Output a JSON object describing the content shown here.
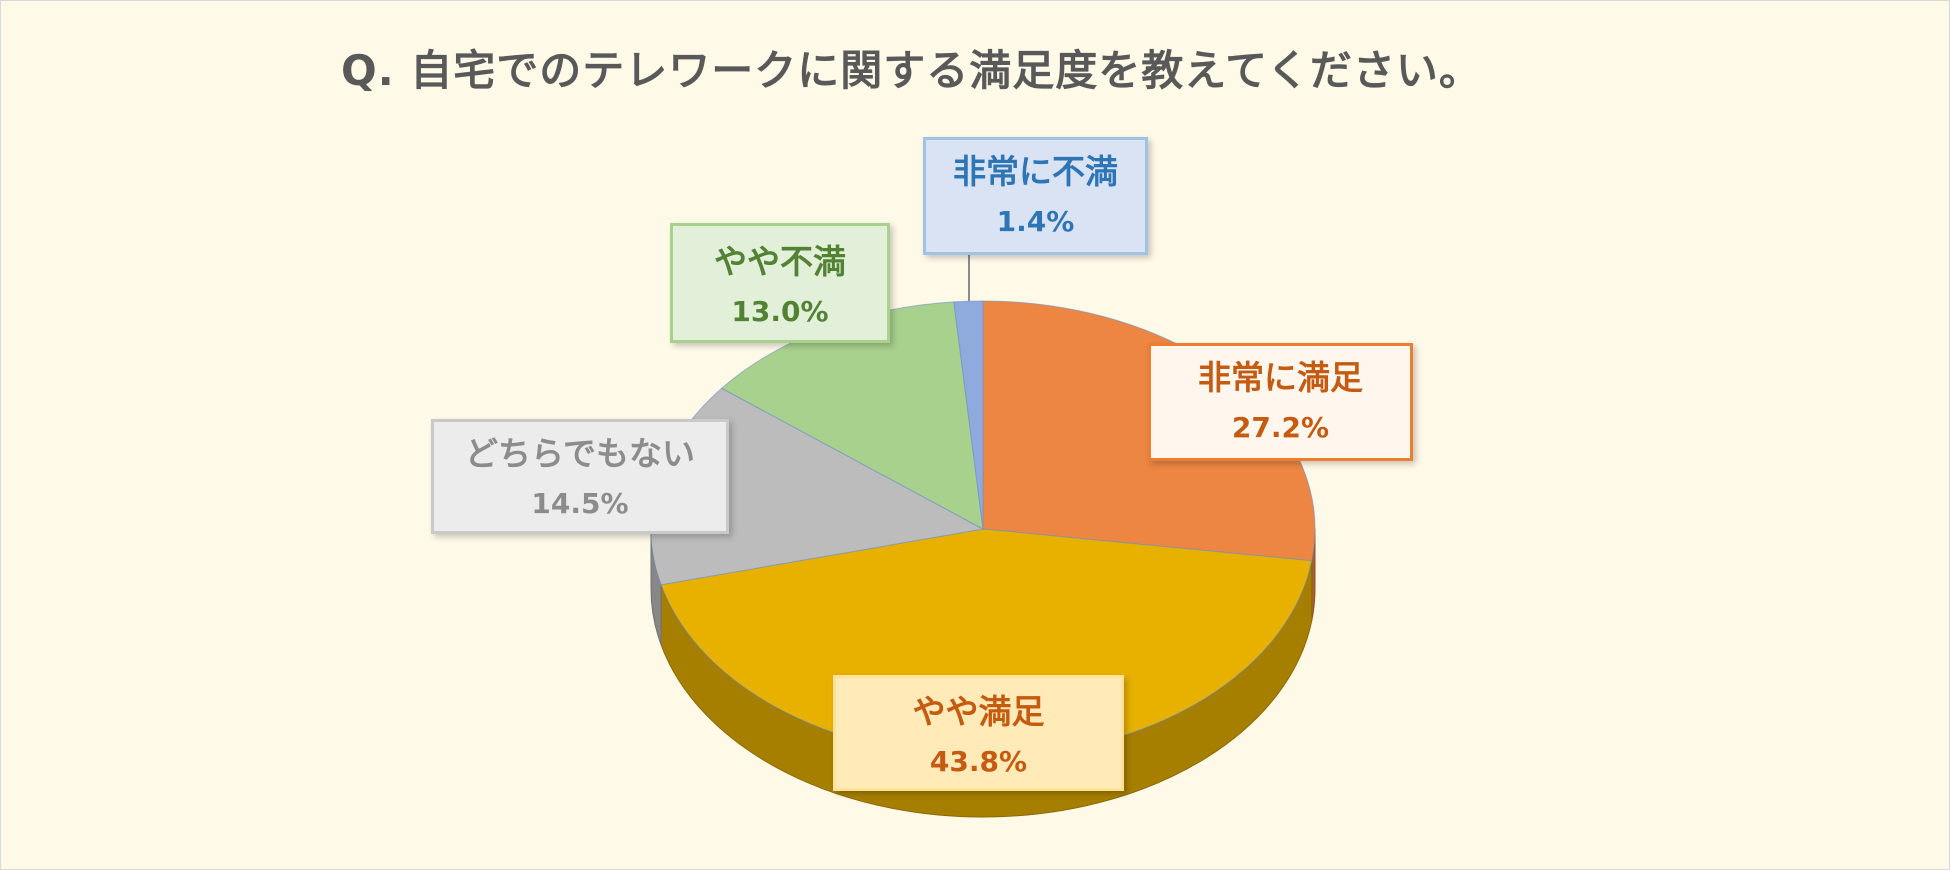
{
  "chart_data": {
    "type": "pie",
    "title": "Q. 自宅でのテレワークに関する満足度を教えてください。",
    "slices": [
      {
        "label": "非常に満足",
        "value": 27.2,
        "value_label": "27.2%",
        "color": "#ed8643"
      },
      {
        "label": "やや満足",
        "value": 43.8,
        "value_label": "43.8%",
        "color": "#e8b100"
      },
      {
        "label": "どちらでもない",
        "value": 14.5,
        "value_label": "14.5%",
        "color": "#bcbcbc"
      },
      {
        "label": "やや不満",
        "value": 13.0,
        "value_label": "13.0%",
        "color": "#a9d18e"
      },
      {
        "label": "非常に不満",
        "value": 1.4,
        "value_label": "1.4%",
        "color": "#8faadc"
      }
    ],
    "legend": "none",
    "start": "top, clockwise",
    "style": "3d"
  }
}
